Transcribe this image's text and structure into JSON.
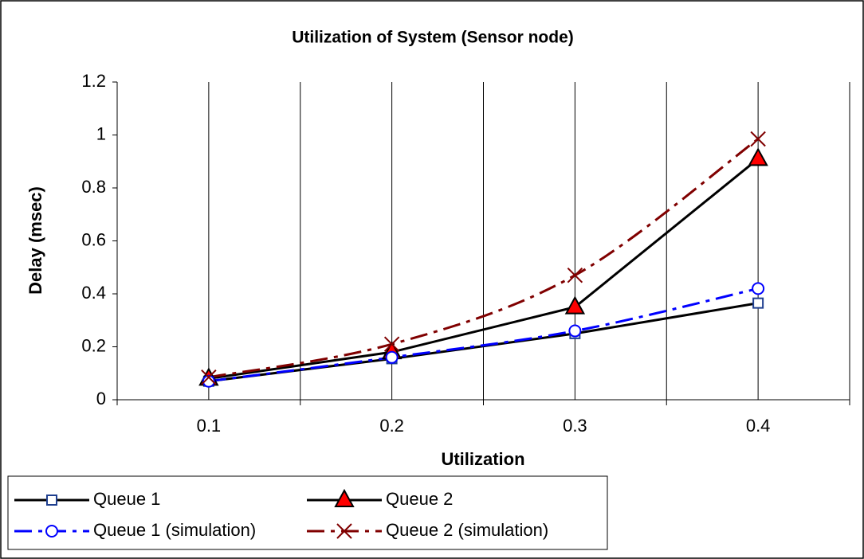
{
  "chart_data": {
    "type": "line",
    "title": "Utilization of System (Sensor node)",
    "x_label": "Utilization",
    "y_label": "Delay (msec)",
    "categories": [
      "0.1",
      "0.2",
      "0.3",
      "0.4"
    ],
    "ylim": [
      0,
      1.2
    ],
    "yticks": [
      0,
      0.2,
      0.4,
      0.6,
      0.8,
      1,
      1.2
    ],
    "series": [
      {
        "name": "Queue 1",
        "color": "#000000",
        "marker": "square",
        "marker_color": "#1f3f8f",
        "marker_fill": "#ffffff",
        "line_style": "solid",
        "smooth": false,
        "values": [
          0.07,
          0.155,
          0.25,
          0.365
        ]
      },
      {
        "name": "Queue 2",
        "color": "#000000",
        "marker": "triangle",
        "marker_color": "#000000",
        "marker_fill": "#ff0000",
        "line_style": "solid",
        "smooth": false,
        "values": [
          0.08,
          0.18,
          0.35,
          0.91
        ]
      },
      {
        "name": "Queue 1 (simulation)",
        "color": "#0000ff",
        "marker": "circle",
        "marker_color": "#0000ff",
        "marker_fill": "#ffffff",
        "line_style": "dashdot",
        "smooth": true,
        "values": [
          0.07,
          0.16,
          0.26,
          0.42
        ]
      },
      {
        "name": "Queue 2 (simulation)",
        "color": "#800000",
        "marker": "x",
        "marker_color": "#800000",
        "marker_fill": "none",
        "line_style": "dashdot",
        "smooth": true,
        "values": [
          0.085,
          0.21,
          0.47,
          0.985
        ]
      }
    ]
  }
}
